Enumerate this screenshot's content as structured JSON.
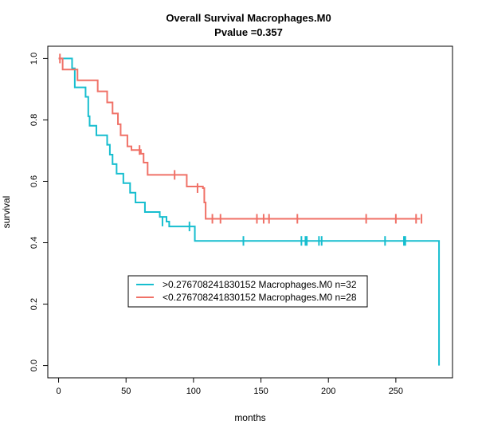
{
  "chart_data": {
    "type": "line",
    "title": "Overall Survival Macrophages.M0",
    "subtitle": "Pvalue =0.357",
    "xlabel": "months",
    "ylabel": "survival",
    "xlim": [
      -8,
      292
    ],
    "ylim": [
      -0.04,
      1.04
    ],
    "x_ticks": [
      "0",
      "50",
      "100",
      "150",
      "200",
      "250"
    ],
    "y_ticks": [
      "0.0",
      "0.2",
      "0.4",
      "0.6",
      "0.8",
      "1.0"
    ],
    "grid": false,
    "legend_position": "bottom-left",
    "series": [
      {
        "name": ">0.276708241830152 Macrophages.M0 n=32",
        "color": "#17becf",
        "steps": [
          [
            0,
            1.0
          ],
          [
            10,
            0.968
          ],
          [
            12,
            0.906
          ],
          [
            20,
            0.875
          ],
          [
            22,
            0.812
          ],
          [
            23,
            0.781
          ],
          [
            28,
            0.75
          ],
          [
            36,
            0.719
          ],
          [
            38,
            0.687
          ],
          [
            40,
            0.656
          ],
          [
            43,
            0.625
          ],
          [
            48,
            0.594
          ],
          [
            53,
            0.563
          ],
          [
            57,
            0.531
          ],
          [
            64,
            0.5
          ],
          [
            75,
            0.484
          ],
          [
            80,
            0.469
          ],
          [
            82,
            0.453
          ],
          [
            101,
            0.406
          ],
          [
            282,
            0.406
          ],
          [
            282,
            0.0
          ]
        ],
        "censors": [
          [
            77,
            0.469
          ],
          [
            97,
            0.453
          ],
          [
            137,
            0.406
          ],
          [
            180,
            0.406
          ],
          [
            183,
            0.406
          ],
          [
            184,
            0.406
          ],
          [
            193,
            0.406
          ],
          [
            195,
            0.406
          ],
          [
            242,
            0.406
          ],
          [
            256,
            0.406
          ],
          [
            257,
            0.406
          ]
        ]
      },
      {
        "name": "<0.276708241830152 Macrophages.M0 n=28",
        "color": "#f07167",
        "steps": [
          [
            0,
            1.0
          ],
          [
            3,
            0.964
          ],
          [
            10,
            0.964
          ],
          [
            14,
            0.929
          ],
          [
            29,
            0.893
          ],
          [
            36,
            0.857
          ],
          [
            40,
            0.821
          ],
          [
            44,
            0.786
          ],
          [
            46,
            0.75
          ],
          [
            51,
            0.714
          ],
          [
            54,
            0.702
          ],
          [
            61,
            0.69
          ],
          [
            63,
            0.661
          ],
          [
            66,
            0.621
          ],
          [
            95,
            0.583
          ],
          [
            107,
            0.578
          ],
          [
            108,
            0.531
          ],
          [
            109,
            0.478
          ],
          [
            268,
            0.478
          ]
        ],
        "censors": [
          [
            1,
            1.0
          ],
          [
            60,
            0.702
          ],
          [
            86,
            0.621
          ],
          [
            103,
            0.578
          ],
          [
            114,
            0.478
          ],
          [
            120,
            0.478
          ],
          [
            147,
            0.478
          ],
          [
            152,
            0.478
          ],
          [
            156,
            0.478
          ],
          [
            177,
            0.478
          ],
          [
            228,
            0.478
          ],
          [
            250,
            0.478
          ],
          [
            265,
            0.478
          ],
          [
            269,
            0.478
          ]
        ]
      }
    ]
  }
}
